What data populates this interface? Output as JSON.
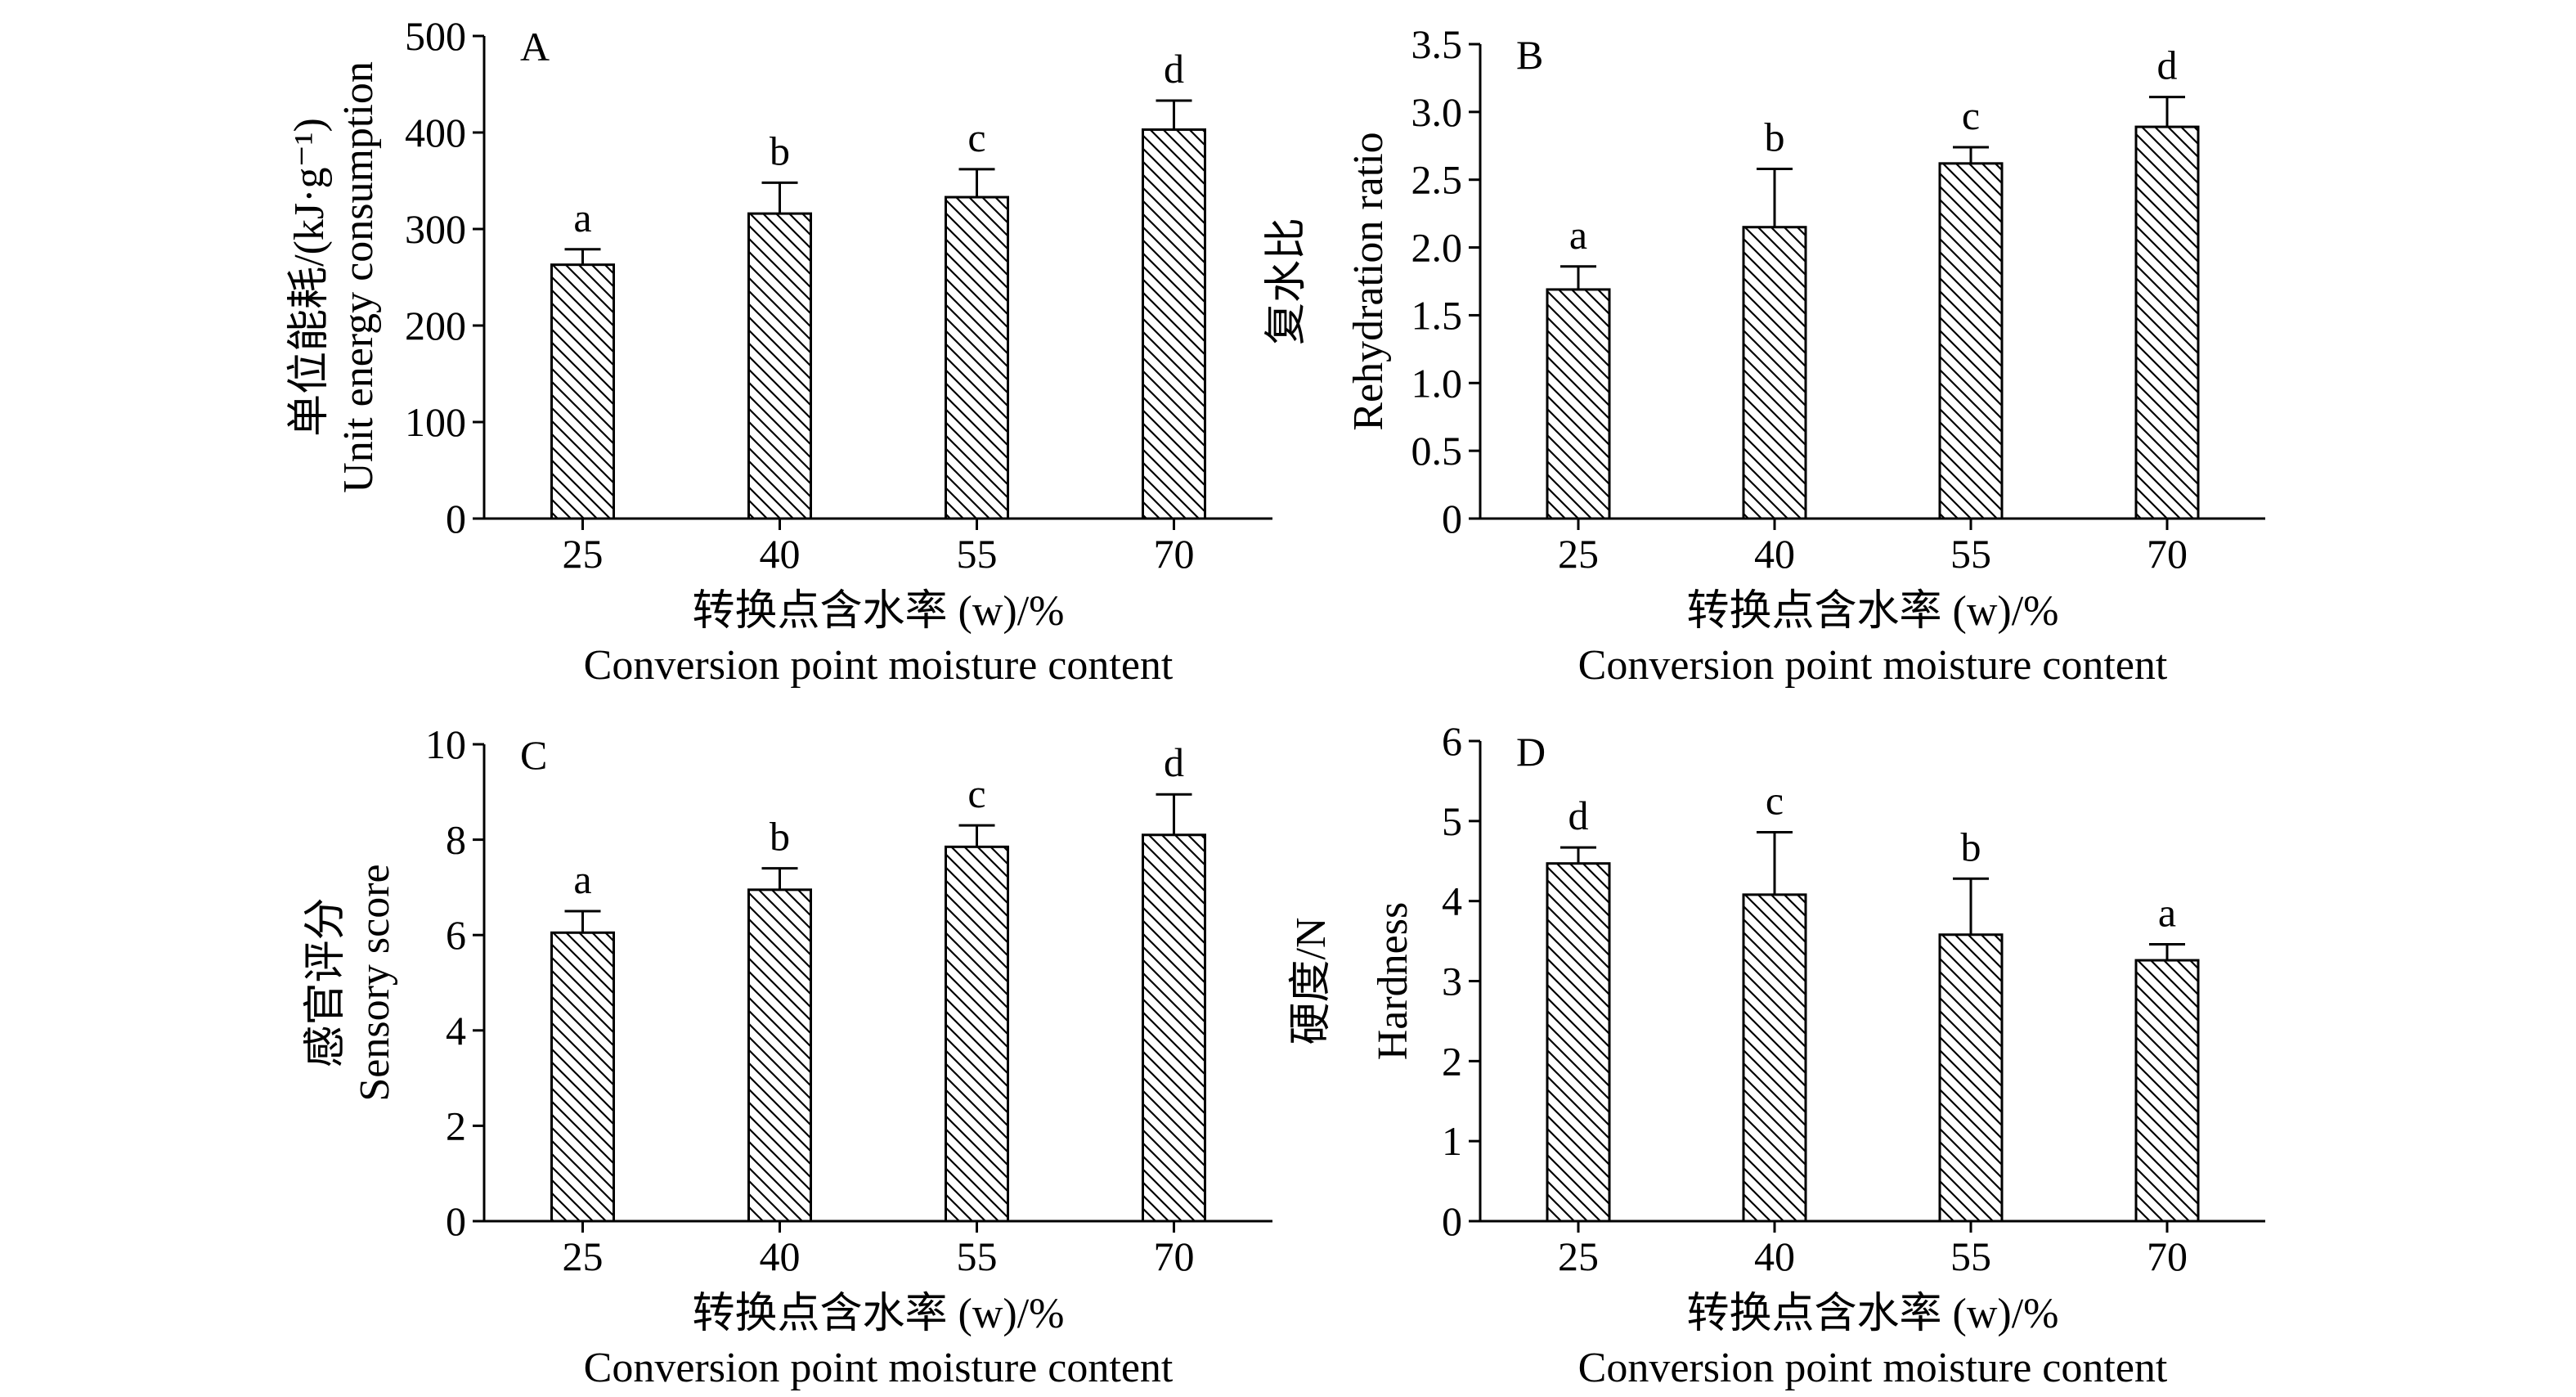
{
  "chart_data": [
    {
      "type": "bar",
      "panel": "A",
      "categories": [
        "25",
        "40",
        "55",
        "70"
      ],
      "values": [
        263,
        316,
        333,
        403
      ],
      "error": [
        16,
        32,
        29,
        30
      ],
      "significance": [
        "a",
        "b",
        "c",
        "d"
      ],
      "ylabel_cn": "单位能耗/(kJ·g⁻¹)",
      "ylabel_en": "Unit energy consumption",
      "xlabel_cn": "转换点含水率 (w)/%",
      "xlabel_en": "Conversion point moisture content",
      "ylim": [
        0,
        500
      ],
      "yticks": [
        "0",
        "100",
        "200",
        "300",
        "400",
        "500"
      ],
      "grid": false,
      "bar_fill": "hatched"
    },
    {
      "type": "bar",
      "panel": "B",
      "categories": [
        "25",
        "40",
        "55",
        "70"
      ],
      "values": [
        1.69,
        2.15,
        2.62,
        2.89
      ],
      "error": [
        0.17,
        0.43,
        0.12,
        0.22
      ],
      "significance": [
        "a",
        "b",
        "c",
        "d"
      ],
      "ylabel_cn": "复水比",
      "ylabel_en": "Rehydration ratio",
      "xlabel_cn": "转换点含水率 (w)/%",
      "xlabel_en": "Conversion point moisture content",
      "ylim": [
        0,
        3.5
      ],
      "yticks": [
        "0",
        "0.5",
        "1.0",
        "1.5",
        "2.0",
        "2.5",
        "3.0",
        "3.5"
      ],
      "grid": false,
      "bar_fill": "hatched"
    },
    {
      "type": "bar",
      "panel": "C",
      "categories": [
        "25",
        "40",
        "55",
        "70"
      ],
      "values": [
        6.05,
        6.95,
        7.85,
        8.1
      ],
      "error": [
        0.45,
        0.45,
        0.45,
        0.85
      ],
      "significance": [
        "a",
        "b",
        "c",
        "d"
      ],
      "ylabel_cn": "感官评分",
      "ylabel_en": "Sensory score",
      "xlabel_cn": "转换点含水率 (w)/%",
      "xlabel_en": "Conversion point moisture content",
      "ylim": [
        0,
        10
      ],
      "yticks": [
        "0",
        "2",
        "4",
        "6",
        "8",
        "10"
      ],
      "grid": false,
      "bar_fill": "hatched"
    },
    {
      "type": "bar",
      "panel": "D",
      "categories": [
        "25",
        "40",
        "55",
        "70"
      ],
      "values": [
        4.47,
        4.08,
        3.58,
        3.26
      ],
      "error": [
        0.2,
        0.78,
        0.7,
        0.2
      ],
      "significance": [
        "d",
        "c",
        "b",
        "a"
      ],
      "ylabel_cn": "硬度/N",
      "ylabel_en": "Hardness",
      "xlabel_cn": "转换点含水率 (w)/%",
      "xlabel_en": "Conversion point moisture content",
      "ylim": [
        0,
        6
      ],
      "yticks": [
        "0",
        "1",
        "2",
        "3",
        "4",
        "5",
        "6"
      ],
      "grid": false,
      "bar_fill": "hatched"
    }
  ]
}
